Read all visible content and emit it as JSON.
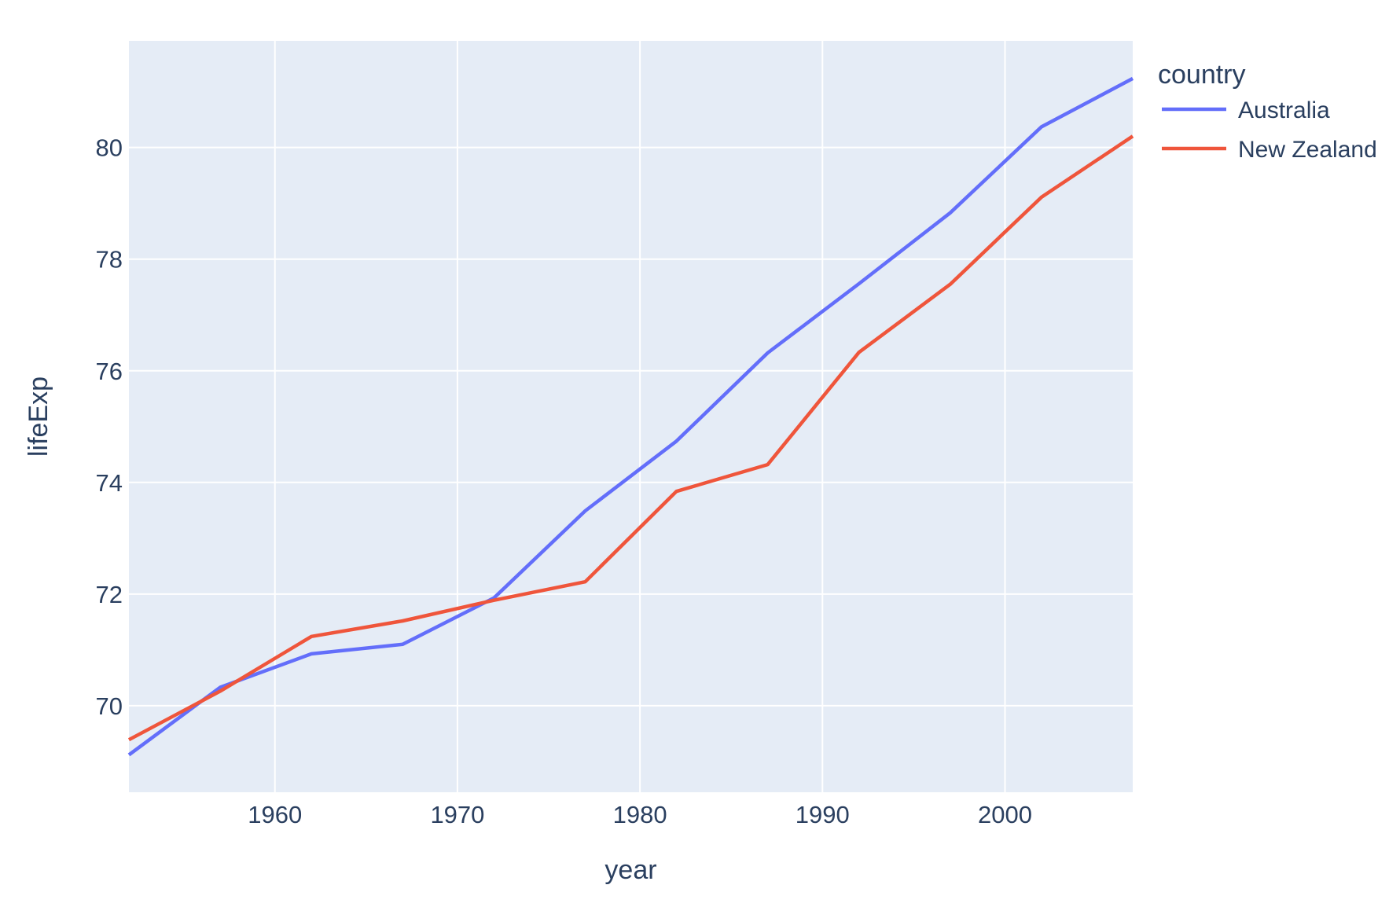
{
  "figure": {
    "background": "#ffffff",
    "plot_background": "#E5ECF6",
    "grid_color": "#ffffff",
    "text_color": "#2a3f5f"
  },
  "chart_data": {
    "type": "line",
    "title": "",
    "xlabel": "year",
    "ylabel": "lifeExp",
    "x": [
      1952,
      1957,
      1962,
      1967,
      1972,
      1977,
      1982,
      1987,
      1992,
      1997,
      2002,
      2007
    ],
    "series": [
      {
        "name": "Australia",
        "color": "#636EFA",
        "values": [
          69.12,
          70.33,
          70.93,
          71.1,
          71.93,
          73.49,
          74.74,
          76.32,
          77.56,
          78.83,
          80.37,
          81.235
        ]
      },
      {
        "name": "New Zealand",
        "color": "#EF553B",
        "values": [
          69.39,
          70.26,
          71.24,
          71.52,
          71.89,
          72.22,
          73.84,
          74.32,
          76.33,
          77.55,
          79.11,
          80.204
        ]
      }
    ],
    "x_ticks": [
      "1960",
      "1970",
      "1980",
      "1990",
      "2000"
    ],
    "x_tick_values": [
      1960,
      1970,
      1980,
      1990,
      2000
    ],
    "y_ticks": [
      "70",
      "72",
      "74",
      "76",
      "78",
      "80"
    ],
    "y_tick_values": [
      70,
      72,
      74,
      76,
      78,
      80
    ],
    "x_range": [
      1952,
      2007
    ],
    "y_range": [
      68.45,
      81.91
    ],
    "grid": true,
    "legend": {
      "title": "country",
      "position": "right",
      "items": [
        {
          "label": "Australia",
          "color": "#636EFA"
        },
        {
          "label": "New Zealand",
          "color": "#EF553B"
        }
      ]
    }
  }
}
